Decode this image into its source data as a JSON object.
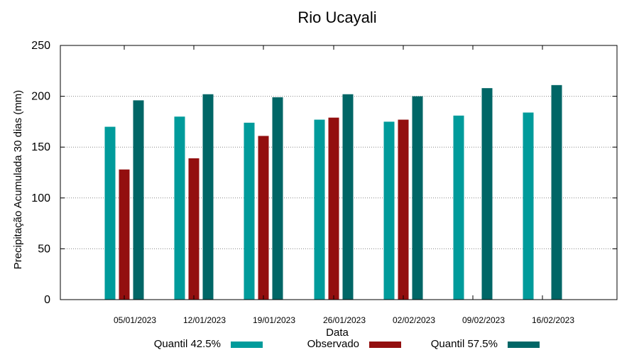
{
  "chart_data": {
    "type": "bar",
    "title": "Rio Ucayali",
    "xlabel": "Data",
    "ylabel": "Precipitação Acumulada 30 dias (mm)",
    "ylim": [
      0,
      250
    ],
    "yticks": [
      0,
      50,
      100,
      150,
      200,
      250
    ],
    "grid": true,
    "legend_position": "bottom",
    "categories": [
      "05/01/2023",
      "12/01/2023",
      "19/01/2023",
      "26/01/2023",
      "02/02/2023",
      "09/02/2023",
      "16/02/2023"
    ],
    "series": [
      {
        "name": "Quantil 42.5%",
        "color": "#009b9b",
        "values": [
          170,
          180,
          174,
          177,
          175,
          181,
          184
        ]
      },
      {
        "name": "Observado",
        "color": "#930f0f",
        "values": [
          128,
          139,
          161,
          179,
          177,
          null,
          null
        ]
      },
      {
        "name": "Quantil 57.5%",
        "color": "#006666",
        "values": [
          196,
          202,
          199,
          202,
          200,
          208,
          211
        ]
      }
    ]
  }
}
